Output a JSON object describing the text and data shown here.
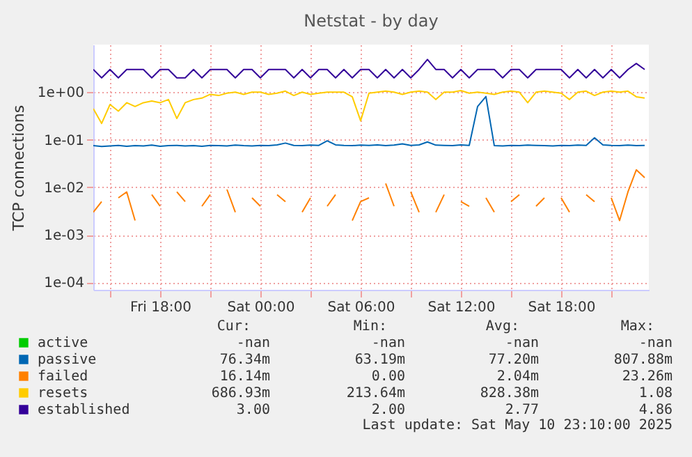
{
  "chart_data": {
    "type": "line",
    "title": "Netstat - by day",
    "ylabel": "TCP connections",
    "log": "y",
    "grid": true,
    "legend": "bottom",
    "x": [
      "2025-05-09T14:00",
      "2025-05-09T14:30",
      "2025-05-09T15:00",
      "2025-05-09T15:30",
      "2025-05-09T16:00",
      "2025-05-09T16:30",
      "2025-05-09T17:00",
      "2025-05-09T17:30",
      "2025-05-09T18:00",
      "2025-05-09T18:30",
      "2025-05-09T19:00",
      "2025-05-09T19:30",
      "2025-05-09T20:00",
      "2025-05-09T20:30",
      "2025-05-09T21:00",
      "2025-05-09T21:30",
      "2025-05-09T22:00",
      "2025-05-09T22:30",
      "2025-05-09T23:00",
      "2025-05-09T23:30",
      "2025-05-10T00:00",
      "2025-05-10T00:30",
      "2025-05-10T01:00",
      "2025-05-10T01:30",
      "2025-05-10T02:00",
      "2025-05-10T02:30",
      "2025-05-10T03:00",
      "2025-05-10T03:30",
      "2025-05-10T04:00",
      "2025-05-10T04:30",
      "2025-05-10T05:00",
      "2025-05-10T05:30",
      "2025-05-10T06:00",
      "2025-05-10T06:30",
      "2025-05-10T07:00",
      "2025-05-10T07:30",
      "2025-05-10T08:00",
      "2025-05-10T08:30",
      "2025-05-10T09:00",
      "2025-05-10T09:30",
      "2025-05-10T10:00",
      "2025-05-10T10:30",
      "2025-05-10T11:00",
      "2025-05-10T11:30",
      "2025-05-10T12:00",
      "2025-05-10T12:30",
      "2025-05-10T13:00",
      "2025-05-10T13:30",
      "2025-05-10T14:00",
      "2025-05-10T14:30",
      "2025-05-10T15:00",
      "2025-05-10T15:30",
      "2025-05-10T16:00",
      "2025-05-10T16:30",
      "2025-05-10T17:00",
      "2025-05-10T17:30",
      "2025-05-10T18:00",
      "2025-05-10T18:30",
      "2025-05-10T19:00",
      "2025-05-10T19:30",
      "2025-05-10T20:00",
      "2025-05-10T20:30",
      "2025-05-10T21:00",
      "2025-05-10T21:30",
      "2025-05-10T22:00",
      "2025-05-10T22:30",
      "2025-05-10T23:00"
    ],
    "xlim": [
      "2025-05-09T14:00",
      "2025-05-10T23:15"
    ],
    "xticks": [
      {
        "value": "2025-05-09T15:00",
        "label": null
      },
      {
        "value": "2025-05-09T18:00",
        "label": "Fri 18:00"
      },
      {
        "value": "2025-05-09T21:00",
        "label": null
      },
      {
        "value": "2025-05-10T00:00",
        "label": "Sat 00:00"
      },
      {
        "value": "2025-05-10T03:00",
        "label": null
      },
      {
        "value": "2025-05-10T06:00",
        "label": "Sat 06:00"
      },
      {
        "value": "2025-05-10T09:00",
        "label": null
      },
      {
        "value": "2025-05-10T12:00",
        "label": "Sat 12:00"
      },
      {
        "value": "2025-05-10T15:00",
        "label": null
      },
      {
        "value": "2025-05-10T18:00",
        "label": "Sat 18:00"
      },
      {
        "value": "2025-05-10T21:00",
        "label": null
      }
    ],
    "ylim": [
      7e-05,
      10
    ],
    "yticks": [
      {
        "value": 0.0001,
        "label": "1e-04"
      },
      {
        "value": 0.001,
        "label": "1e-03"
      },
      {
        "value": 0.01,
        "label": "1e-02"
      },
      {
        "value": 0.1,
        "label": "1e-01"
      },
      {
        "value": 1,
        "label": "1e+00"
      }
    ],
    "series": [
      {
        "name": "active",
        "color": "#00cc00",
        "values": [
          null,
          null,
          null,
          null,
          null,
          null,
          null,
          null,
          null,
          null,
          null,
          null,
          null,
          null,
          null,
          null,
          null,
          null,
          null,
          null,
          null,
          null,
          null,
          null,
          null,
          null,
          null,
          null,
          null,
          null,
          null,
          null,
          null,
          null,
          null,
          null,
          null,
          null,
          null,
          null,
          null,
          null,
          null,
          null,
          null,
          null,
          null,
          null,
          null,
          null,
          null,
          null,
          null,
          null,
          null,
          null,
          null,
          null,
          null,
          null,
          null,
          null,
          null,
          null,
          null,
          null,
          null
        ]
      },
      {
        "name": "passive",
        "color": "#0066b3",
        "values": [
          0.075,
          0.072,
          0.074,
          0.076,
          0.073,
          0.075,
          0.074,
          0.077,
          0.073,
          0.075,
          0.076,
          0.074,
          0.075,
          0.073,
          0.076,
          0.075,
          0.074,
          0.077,
          0.075,
          0.074,
          0.076,
          0.075,
          0.078,
          0.085,
          0.076,
          0.075,
          0.077,
          0.076,
          0.095,
          0.078,
          0.076,
          0.075,
          0.077,
          0.076,
          0.078,
          0.075,
          0.077,
          0.082,
          0.076,
          0.078,
          0.09,
          0.077,
          0.076,
          0.075,
          0.078,
          0.076,
          0.5,
          0.808,
          0.075,
          0.074,
          0.076,
          0.075,
          0.077,
          0.076,
          0.075,
          0.074,
          0.076,
          0.075,
          0.077,
          0.076,
          0.11,
          0.078,
          0.076,
          0.075,
          0.077,
          0.075,
          0.076
        ]
      },
      {
        "name": "failed",
        "color": "#ff8000",
        "values": [
          0.003,
          0.005,
          null,
          0.006,
          0.008,
          0.002,
          null,
          0.007,
          0.004,
          null,
          0.008,
          0.005,
          null,
          0.004,
          0.007,
          null,
          0.009,
          0.003,
          null,
          0.006,
          0.004,
          null,
          0.007,
          0.005,
          null,
          0.003,
          0.006,
          null,
          0.004,
          0.007,
          null,
          0.002,
          0.005,
          0.006,
          null,
          0.012,
          0.004,
          null,
          0.008,
          0.003,
          null,
          0.003,
          0.007,
          null,
          0.005,
          0.004,
          null,
          0.006,
          0.003,
          null,
          0.005,
          0.007,
          null,
          0.004,
          0.006,
          null,
          0.006,
          0.003,
          null,
          0.007,
          0.005,
          null,
          0.006,
          0.002,
          0.008,
          0.0233,
          0.016
        ]
      },
      {
        "name": "resets",
        "color": "#ffcc00",
        "values": [
          0.45,
          0.22,
          0.55,
          0.4,
          0.6,
          0.5,
          0.6,
          0.65,
          0.6,
          0.7,
          0.28,
          0.6,
          0.7,
          0.75,
          0.9,
          0.85,
          0.95,
          1.0,
          0.9,
          1.0,
          1.0,
          0.9,
          0.95,
          1.05,
          0.85,
          1.0,
          0.9,
          0.95,
          1.0,
          1.0,
          1.0,
          0.8,
          0.25,
          0.95,
          1.0,
          1.05,
          1.0,
          0.9,
          1.0,
          1.05,
          1.0,
          0.7,
          1.0,
          1.0,
          1.08,
          0.95,
          1.0,
          0.95,
          0.9,
          1.0,
          1.05,
          1.0,
          0.6,
          1.0,
          1.05,
          1.0,
          0.95,
          0.7,
          1.0,
          1.05,
          0.85,
          1.0,
          1.05,
          1.0,
          1.05,
          0.8,
          0.75
        ]
      },
      {
        "name": "established",
        "color": "#330099",
        "values": [
          3,
          2,
          3,
          2,
          3,
          3,
          3,
          2,
          3,
          3,
          2,
          2,
          3,
          2,
          3,
          3,
          3,
          2,
          3,
          3,
          2,
          3,
          3,
          3,
          2,
          3,
          2,
          3,
          3,
          2,
          3,
          2,
          3,
          3,
          2,
          3,
          2,
          3,
          2,
          3,
          4.86,
          3,
          3,
          2,
          3,
          2,
          3,
          3,
          3,
          2,
          3,
          3,
          2,
          3,
          3,
          3,
          3,
          2,
          3,
          2,
          3,
          2,
          3,
          2,
          3,
          4,
          3
        ]
      }
    ],
    "annotations": [
      "Cur:",
      "Min:",
      "Avg:",
      "Max:",
      "-nan",
      "-nan",
      "-nan",
      "-nan",
      "76.34m",
      "63.19m",
      "77.20m",
      "807.88m",
      "16.14m",
      "0.00",
      "2.04m",
      "23.26m",
      "686.93m",
      "213.64m",
      "828.38m",
      "1.08",
      "3.00",
      "2.00",
      "2.77",
      "4.86",
      "Last update: Sat May 10 23:10:00 2025"
    ]
  }
}
